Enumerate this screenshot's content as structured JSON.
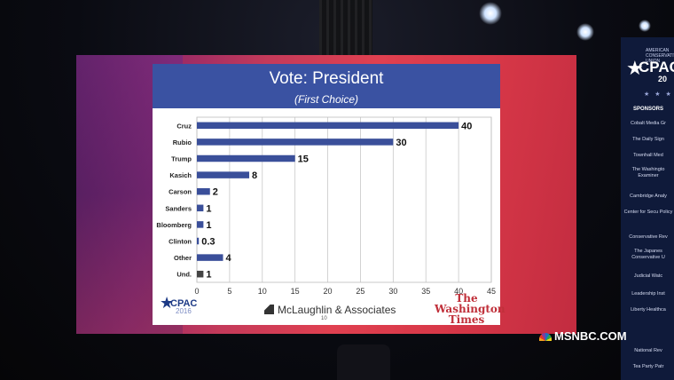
{
  "slide": {
    "title": "Vote: President",
    "subtitle": "(First Choice)",
    "footer_left_logo_text": "CPAC",
    "footer_left_logo_year": "2016",
    "footer_center": "McLaughlin & Associates",
    "page_number": "10",
    "footer_right_logo": "The Washington Times"
  },
  "chart_data": {
    "type": "bar",
    "orientation": "horizontal",
    "title": "Vote: President",
    "subtitle": "(First Choice)",
    "categories": [
      "Cruz",
      "Rubio",
      "Trump",
      "Kasich",
      "Carson",
      "Sanders",
      "Bloomberg",
      "Clinton",
      "Other",
      "Und."
    ],
    "values": [
      40,
      30,
      15,
      8,
      2,
      1,
      1,
      0.3,
      4,
      1
    ],
    "value_labels": [
      "40",
      "30",
      "15",
      "8",
      "2",
      "1",
      "1",
      "0.3",
      "4",
      "1"
    ],
    "xlim": [
      0,
      45
    ],
    "xticks": [
      "0",
      "5",
      "10",
      "15",
      "20",
      "25",
      "30",
      "35",
      "40",
      "45"
    ],
    "grid": true,
    "colors": {
      "bar": "#3a4f9a",
      "bar_last": "#444444",
      "header": "#3a52a2"
    }
  },
  "sidebar": {
    "logo_small": "AMERICAN CONSERVATIVE UNION",
    "logo_main": "CPAC",
    "logo_year": "20",
    "stars": "★ ★ ★",
    "heading": "SPONSORS",
    "items": [
      "Cobalt Media Gr",
      "The Daily Sign",
      "Townhall Med",
      "The Washingto Examiner",
      "Cambridge Analy",
      "Center for Secu Policy",
      "Conservative Rev",
      "The Japanes Conservative U",
      "Judicial Watc",
      "Leadership Inst",
      "Liberty Healthca",
      "National Rev",
      "Tea Party Patr"
    ]
  },
  "watermark": "MSNBC.COM"
}
